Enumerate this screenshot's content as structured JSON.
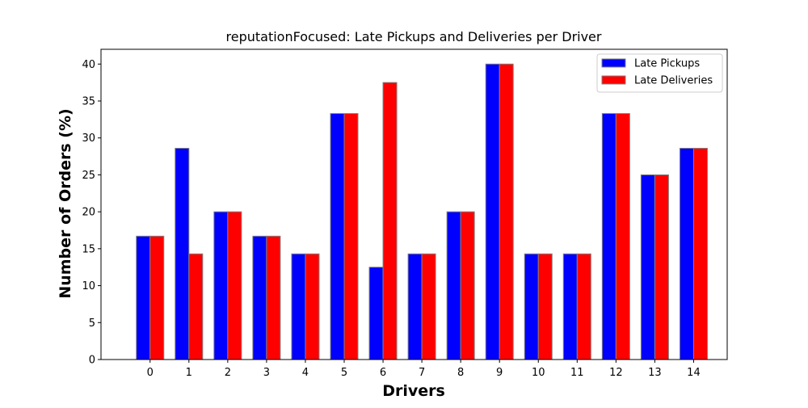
{
  "chart_data": {
    "type": "bar",
    "title": "reputationFocused: Late Pickups and Deliveries per Driver",
    "xlabel": "Drivers",
    "ylabel": "Number of Orders (%)",
    "categories": [
      "0",
      "1",
      "2",
      "3",
      "4",
      "5",
      "6",
      "7",
      "8",
      "9",
      "10",
      "11",
      "12",
      "13",
      "14"
    ],
    "ylim": [
      0,
      42
    ],
    "yticks": [
      0,
      5,
      10,
      15,
      20,
      25,
      30,
      35,
      40
    ],
    "grid": false,
    "legend_position": "top-right",
    "series": [
      {
        "name": "Late Pickups",
        "color": "#0000ff",
        "values": [
          16.7,
          28.6,
          20.0,
          16.7,
          14.3,
          33.3,
          12.5,
          14.3,
          20.0,
          40.0,
          14.3,
          14.3,
          33.3,
          25.0,
          28.6
        ]
      },
      {
        "name": "Late Deliveries",
        "color": "#ff0000",
        "values": [
          16.7,
          14.3,
          20.0,
          16.7,
          14.3,
          33.3,
          37.5,
          14.3,
          20.0,
          40.0,
          14.3,
          14.3,
          33.3,
          25.0,
          28.6
        ]
      }
    ],
    "bar_edge_color": "#808080"
  }
}
